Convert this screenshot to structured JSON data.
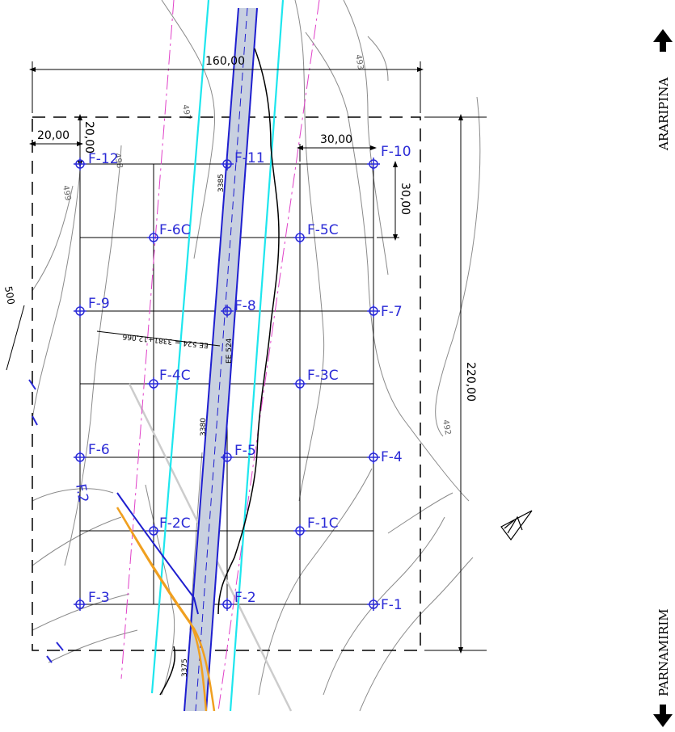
{
  "directions": {
    "north": "ARARIPINA",
    "south": "PARNAMIRIM"
  },
  "points": {
    "F1": "F-1",
    "F1C": "F-1C",
    "F2": "F-2",
    "F2C": "F-2C",
    "F3": "F-3",
    "F4": "F-4",
    "F3C": "F-3C",
    "F5": "F-5",
    "F4C": "F-4C",
    "F6": "F-6",
    "F7": "F-7",
    "F8": "F-8",
    "F9": "F-9",
    "F5C": "F-5C",
    "F6C": "F-6C",
    "F10": "F-10",
    "F11": "F-11",
    "F12": "F-12",
    "F2_fragment": "F.2"
  },
  "dimensions": {
    "width_total": "160,00",
    "height_total": "220,00",
    "spacing_x": "30,00",
    "spacing_y": "30,00",
    "offset_x": "20,00",
    "offset_y": "20,00"
  },
  "stations": {
    "s3385": "3385",
    "s3380": "3380",
    "s3375": "3375",
    "ee_code": "EE 524",
    "ee_note": "EE 524 = 3381+12,066"
  },
  "contours": {
    "c493": "493",
    "c492": "492",
    "c497": "497",
    "c498": "498",
    "c499": "499",
    "c500": "500"
  },
  "colors": {
    "label_blue": "#2a2ad6",
    "road_blue": "#1f1fcf",
    "road_fill": "#c8d0e0",
    "cyan": "#1ee6ee",
    "magenta": "#e040c8",
    "orange": "#f0a020",
    "contour_gray": "#8a8a8a"
  }
}
